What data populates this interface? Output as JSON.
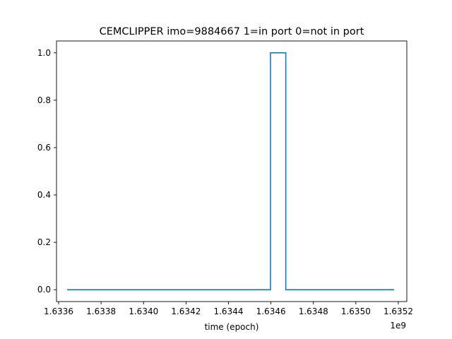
{
  "chart_data": {
    "type": "line",
    "title": "CEMCLIPPER imo=9884667 1=in port 0=not in port",
    "xlabel": "time (epoch)",
    "ylabel": "",
    "x_offset_label": "1e9",
    "x_scale_factor": 1000000000,
    "xlim": [
      1.63359,
      1.63524
    ],
    "ylim": [
      -0.05,
      1.05
    ],
    "x_ticks": [
      1.6336,
      1.6338,
      1.634,
      1.6342,
      1.6344,
      1.6346,
      1.6348,
      1.635,
      1.6352
    ],
    "x_tick_labels": [
      "1.6336",
      "1.6338",
      "1.6340",
      "1.6342",
      "1.6344",
      "1.6346",
      "1.6348",
      "1.6350",
      "1.6352"
    ],
    "y_ticks": [
      0.0,
      0.2,
      0.4,
      0.6,
      0.8,
      1.0
    ],
    "y_tick_labels": [
      "0.0",
      "0.2",
      "0.4",
      "0.6",
      "0.8",
      "1.0"
    ],
    "grid": false,
    "legend": "none",
    "series": [
      {
        "color": "#1f77b4",
        "x": [
          1.63364,
          1.634598,
          1.634598,
          1.63467,
          1.63467,
          1.63518
        ],
        "y": [
          0,
          0,
          1,
          1,
          0,
          0
        ]
      }
    ]
  }
}
